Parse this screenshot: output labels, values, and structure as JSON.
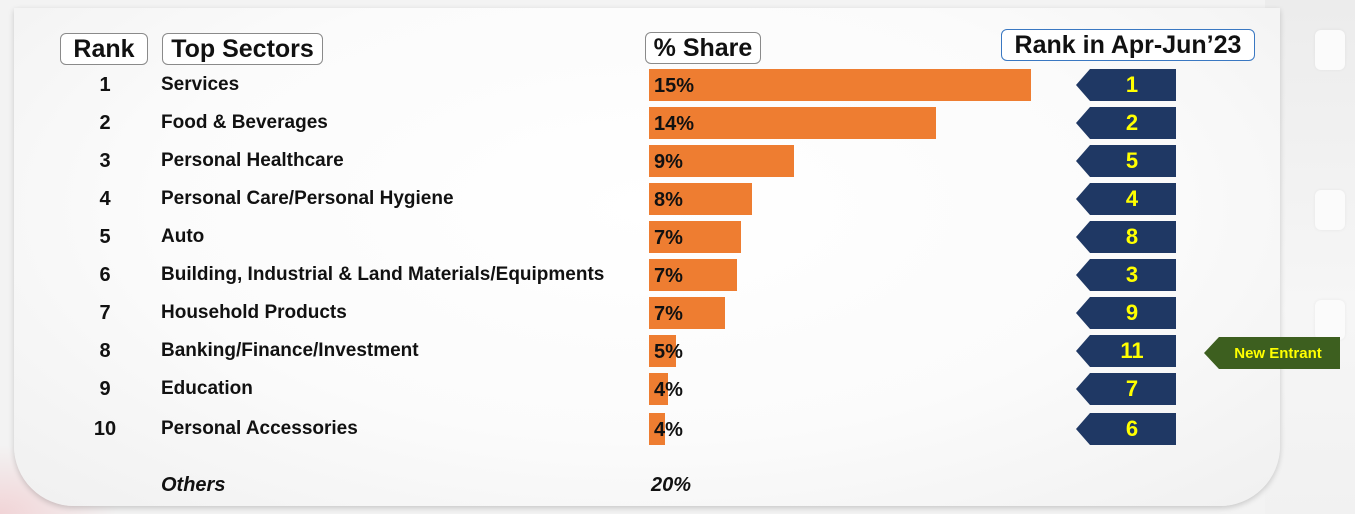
{
  "headers": {
    "rank": "Rank",
    "sectors": "Top Sectors",
    "share": "% Share",
    "prev_rank": "Rank in Apr-Jun’23"
  },
  "chart_data": {
    "type": "bar",
    "orientation": "horizontal",
    "categories": [
      "Services",
      "Food & Beverages",
      "Personal Healthcare",
      "Personal Care/Personal Hygiene",
      "Auto",
      "Building, Industrial & Land Materials/Equipments",
      "Household Products",
      "Banking/Finance/Investment",
      "Education",
      "Personal Accessories"
    ],
    "ranks": [
      "1",
      "2",
      "3",
      "4",
      "5",
      "6",
      "7",
      "8",
      "9",
      "10"
    ],
    "values": [
      15,
      14,
      9,
      8,
      7,
      7,
      7,
      5,
      4,
      4
    ],
    "value_labels": [
      "15%",
      "14%",
      "9%",
      "8%",
      "7%",
      "7%",
      "7%",
      "5%",
      "4%",
      "4%"
    ],
    "bar_fraction": [
      1.0,
      0.75,
      0.38,
      0.27,
      0.24,
      0.23,
      0.2,
      0.07,
      0.05,
      0.04
    ],
    "prev_ranks": [
      "1",
      "2",
      "5",
      "4",
      "8",
      "3",
      "9",
      "11",
      "7",
      "6"
    ],
    "bar_color": "#ee7d31"
  },
  "new_entrant": {
    "label": "New Entrant",
    "row": 7,
    "color": "#3d5f1f"
  },
  "others": {
    "label": "Others",
    "value": "20%"
  },
  "colors": {
    "arrow_fill": "#1f3864",
    "arrow_text": "#ffff00",
    "header_blue_border": "#3a78c2"
  }
}
